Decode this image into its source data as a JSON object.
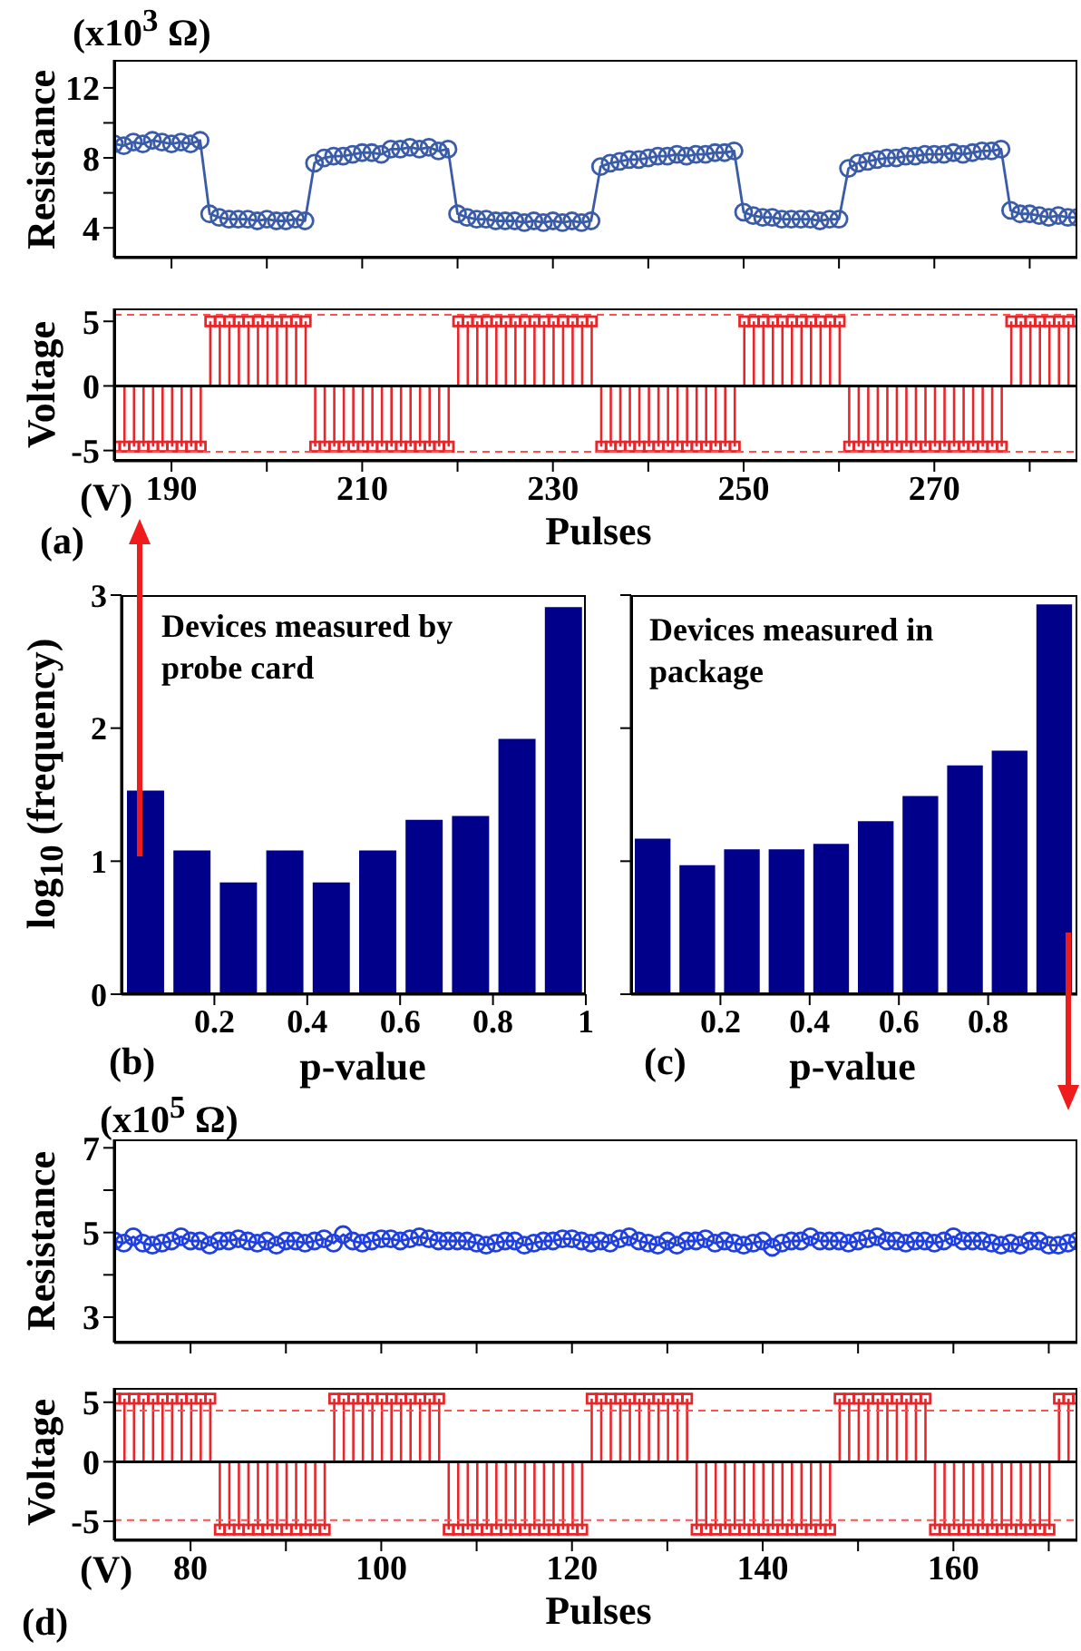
{
  "chart_data": [
    {
      "type": "line",
      "ylabel": "Resistance",
      "annotations": [
        "(x10$^{3}$ Ω)"
      ],
      "marker": "circle",
      "tick_labels": "y",
      "xlim": [
        184,
        285
      ],
      "xticks": [
        190,
        200,
        210,
        220,
        230,
        240,
        250,
        260,
        270,
        280
      ],
      "ylim": [
        2.3,
        13.6
      ],
      "yticks": [
        4,
        {
          "value": 6,
          "label": null
        },
        8,
        {
          "value": 10,
          "label": null
        },
        12
      ],
      "x": [
        184,
        185,
        186,
        187,
        188,
        189,
        190,
        191,
        192,
        193,
        194,
        195,
        196,
        197,
        198,
        199,
        200,
        201,
        202,
        203,
        204,
        205,
        206,
        207,
        208,
        209,
        210,
        211,
        212,
        213,
        214,
        215,
        216,
        217,
        218,
        219,
        220,
        221,
        222,
        223,
        224,
        225,
        226,
        227,
        228,
        229,
        230,
        231,
        232,
        233,
        234,
        235,
        236,
        237,
        238,
        239,
        240,
        241,
        242,
        243,
        244,
        245,
        246,
        247,
        248,
        249,
        250,
        251,
        252,
        253,
        254,
        255,
        256,
        257,
        258,
        259,
        260,
        261,
        262,
        263,
        264,
        265,
        266,
        267,
        268,
        269,
        270,
        271,
        272,
        273,
        274,
        275,
        276,
        277,
        278,
        279,
        280,
        281,
        282,
        283,
        284,
        285
      ],
      "series": [
        {
          "color": "#3a5ca8",
          "values": [
            8.8,
            8.7,
            8.9,
            8.8,
            9.0,
            8.9,
            8.8,
            8.9,
            8.8,
            9.0,
            4.8,
            4.6,
            4.5,
            4.5,
            4.5,
            4.4,
            4.5,
            4.4,
            4.4,
            4.5,
            4.4,
            7.7,
            8.0,
            8.1,
            8.1,
            8.2,
            8.3,
            8.3,
            8.2,
            8.5,
            8.5,
            8.6,
            8.5,
            8.6,
            8.4,
            8.5,
            4.8,
            4.6,
            4.5,
            4.5,
            4.4,
            4.4,
            4.4,
            4.3,
            4.4,
            4.3,
            4.4,
            4.3,
            4.4,
            4.3,
            4.4,
            7.5,
            7.7,
            7.8,
            7.9,
            7.9,
            8.0,
            8.1,
            8.1,
            8.2,
            8.1,
            8.2,
            8.2,
            8.3,
            8.3,
            8.4,
            4.9,
            4.7,
            4.6,
            4.6,
            4.5,
            4.5,
            4.5,
            4.5,
            4.4,
            4.5,
            4.5,
            7.4,
            7.7,
            7.8,
            7.9,
            8.0,
            8.0,
            8.1,
            8.1,
            8.2,
            8.2,
            8.2,
            8.3,
            8.2,
            8.3,
            8.4,
            8.4,
            8.5,
            5.0,
            4.8,
            4.8,
            4.7,
            4.6,
            4.7,
            4.6,
            4.6
          ]
        }
      ]
    },
    {
      "type": "lollipop",
      "ylabel": "Voltage",
      "xlabel": "Pulses",
      "annotations": [
        "(V)",
        "(a)"
      ],
      "marker": "square",
      "xlim": [
        184,
        285
      ],
      "xticks": [
        190,
        {
          "value": 200,
          "label": null
        },
        210,
        {
          "value": 220,
          "label": null
        },
        230,
        {
          "value": 240,
          "label": null
        },
        250,
        {
          "value": 260,
          "label": null
        },
        270,
        {
          "value": 280,
          "label": null
        }
      ],
      "ylim": [
        -5.8,
        6
      ],
      "yticks": [
        -5,
        0,
        5
      ],
      "ref_lines": [
        {
          "axis": "y",
          "value": 5.5,
          "color": "#ff5050",
          "line_style": "dashed"
        },
        {
          "axis": "y",
          "value": -5.1,
          "color": "#ff5050",
          "line_style": "dashed"
        },
        {
          "axis": "y",
          "value": 0,
          "color": "#000000",
          "line_style": "solid"
        }
      ],
      "x": [
        184,
        185,
        186,
        187,
        188,
        189,
        190,
        191,
        192,
        193,
        194,
        195,
        196,
        197,
        198,
        199,
        200,
        201,
        202,
        203,
        204,
        205,
        206,
        207,
        208,
        209,
        210,
        211,
        212,
        213,
        214,
        215,
        216,
        217,
        218,
        219,
        220,
        221,
        222,
        223,
        224,
        225,
        226,
        227,
        228,
        229,
        230,
        231,
        232,
        233,
        234,
        235,
        236,
        237,
        238,
        239,
        240,
        241,
        242,
        243,
        244,
        245,
        246,
        247,
        248,
        249,
        250,
        251,
        252,
        253,
        254,
        255,
        256,
        257,
        258,
        259,
        260,
        261,
        262,
        263,
        264,
        265,
        266,
        267,
        268,
        269,
        270,
        271,
        272,
        273,
        274,
        275,
        276,
        277,
        278,
        279,
        280,
        281,
        282,
        283,
        284,
        285
      ],
      "series": [
        {
          "color": "#e8262a",
          "values": [
            -4.7,
            -4.7,
            -4.7,
            -4.7,
            -4.7,
            -4.7,
            -4.7,
            -4.7,
            -4.7,
            -4.7,
            5,
            5,
            5,
            5,
            5,
            5,
            5,
            5,
            5,
            5,
            5,
            -4.7,
            -4.7,
            -4.7,
            -4.7,
            -4.7,
            -4.7,
            -4.7,
            -4.7,
            -4.7,
            -4.7,
            -4.7,
            -4.7,
            -4.7,
            -4.7,
            -4.7,
            5,
            5,
            5,
            5,
            5,
            5,
            5,
            5,
            5,
            5,
            5,
            5,
            5,
            5,
            5,
            -4.7,
            -4.7,
            -4.7,
            -4.7,
            -4.7,
            -4.7,
            -4.7,
            -4.7,
            -4.7,
            -4.7,
            -4.7,
            -4.7,
            -4.7,
            -4.7,
            -4.7,
            5,
            5,
            5,
            5,
            5,
            5,
            5,
            5,
            5,
            5,
            5,
            -4.7,
            -4.7,
            -4.7,
            -4.7,
            -4.7,
            -4.7,
            -4.7,
            -4.7,
            -4.7,
            -4.7,
            -4.7,
            -4.7,
            -4.7,
            -4.7,
            -4.7,
            -4.7,
            -4.7,
            5,
            5,
            5,
            5,
            5,
            5,
            5,
            5
          ]
        }
      ]
    },
    {
      "type": "histogram",
      "ylabel": "log$_{10}$ (frequency)",
      "xlabel": "p-value",
      "annotations": [
        "Devices measured by probe card",
        "(b)"
      ],
      "color": "#00008b",
      "bins": [
        0,
        0.1,
        0.2,
        0.3,
        0.4,
        0.5,
        0.6,
        0.7,
        0.8,
        0.9,
        1
      ],
      "values": [
        1.53,
        1.08,
        0.84,
        1.08,
        0.84,
        1.08,
        1.31,
        1.34,
        1.92,
        2.91
      ],
      "xlim": [
        0,
        1
      ],
      "xticks": [
        0.2,
        0.4,
        0.6,
        0.8,
        1
      ],
      "ylim": [
        0,
        3
      ],
      "yticks": [
        0,
        1,
        2,
        3
      ]
    },
    {
      "type": "histogram",
      "xlabel": "p-value",
      "annotations": [
        "Devices measured in package",
        "(c)"
      ],
      "color": "#00008b",
      "bins": [
        0,
        0.1,
        0.2,
        0.3,
        0.4,
        0.5,
        0.6,
        0.7,
        0.8,
        0.9,
        1
      ],
      "values": [
        1.17,
        0.97,
        1.09,
        1.09,
        1.13,
        1.3,
        1.49,
        1.72,
        1.83,
        2.93
      ],
      "xlim": [
        0,
        1
      ],
      "xticks": [
        0.2,
        0.4,
        0.6,
        0.8
      ],
      "ylim": [
        0,
        3
      ],
      "yticks": [
        0,
        1,
        2,
        3
      ],
      "tick_labels": "x"
    },
    {
      "type": "line",
      "ylabel": "Resistance",
      "annotations": [
        "(x10$^{5}$ Ω)"
      ],
      "marker": "circle",
      "tick_labels": "y",
      "xlim": [
        72,
        173
      ],
      "xticks": [
        80,
        90,
        100,
        110,
        120,
        130,
        140,
        150,
        160,
        170
      ],
      "ylim": [
        2.4,
        7.2
      ],
      "yticks": [
        3,
        {
          "value": 4,
          "label": null
        },
        5,
        {
          "value": 6,
          "label": null
        },
        7
      ],
      "x": [
        72,
        73,
        74,
        75,
        76,
        77,
        78,
        79,
        80,
        81,
        82,
        83,
        84,
        85,
        86,
        87,
        88,
        89,
        90,
        91,
        92,
        93,
        94,
        95,
        96,
        97,
        98,
        99,
        100,
        101,
        102,
        103,
        104,
        105,
        106,
        107,
        108,
        109,
        110,
        111,
        112,
        113,
        114,
        115,
        116,
        117,
        118,
        119,
        120,
        121,
        122,
        123,
        124,
        125,
        126,
        127,
        128,
        129,
        130,
        131,
        132,
        133,
        134,
        135,
        136,
        137,
        138,
        139,
        140,
        141,
        142,
        143,
        144,
        145,
        146,
        147,
        148,
        149,
        150,
        151,
        152,
        153,
        154,
        155,
        156,
        157,
        158,
        159,
        160,
        161,
        162,
        163,
        164,
        165,
        166,
        167,
        168,
        169,
        170,
        171,
        172,
        173
      ],
      "series": [
        {
          "color": "#1f3fe0",
          "values": [
            4.8,
            4.75,
            4.9,
            4.75,
            4.7,
            4.75,
            4.8,
            4.9,
            4.8,
            4.8,
            4.7,
            4.8,
            4.8,
            4.85,
            4.8,
            4.75,
            4.8,
            4.7,
            4.8,
            4.8,
            4.75,
            4.8,
            4.85,
            4.75,
            4.95,
            4.8,
            4.75,
            4.8,
            4.85,
            4.85,
            4.8,
            4.85,
            4.9,
            4.85,
            4.8,
            4.8,
            4.8,
            4.8,
            4.75,
            4.7,
            4.75,
            4.8,
            4.8,
            4.7,
            4.75,
            4.8,
            4.8,
            4.85,
            4.85,
            4.8,
            4.75,
            4.8,
            4.75,
            4.85,
            4.9,
            4.8,
            4.75,
            4.7,
            4.8,
            4.7,
            4.8,
            4.8,
            4.85,
            4.75,
            4.8,
            4.75,
            4.7,
            4.75,
            4.8,
            4.65,
            4.75,
            4.8,
            4.8,
            4.9,
            4.8,
            4.8,
            4.8,
            4.75,
            4.8,
            4.85,
            4.9,
            4.8,
            4.8,
            4.75,
            4.8,
            4.8,
            4.75,
            4.8,
            4.9,
            4.8,
            4.8,
            4.8,
            4.75,
            4.7,
            4.75,
            4.7,
            4.8,
            4.8,
            4.7,
            4.7,
            4.75,
            4.8
          ]
        }
      ]
    },
    {
      "type": "lollipop",
      "ylabel": "Voltage",
      "xlabel": "Pulses",
      "annotations": [
        "(V)",
        "(d)"
      ],
      "marker": "square",
      "xlim": [
        72,
        173
      ],
      "xticks": [
        80,
        {
          "value": 90,
          "label": null
        },
        100,
        {
          "value": 110,
          "label": null
        },
        120,
        {
          "value": 130,
          "label": null
        },
        140,
        {
          "value": 150,
          "label": null
        },
        160,
        {
          "value": 170,
          "label": null
        }
      ],
      "ylim": [
        -6.6,
        6.2
      ],
      "yticks": [
        -5,
        0,
        5
      ],
      "ref_lines": [
        {
          "axis": "y",
          "value": 4.3,
          "color": "#ff5050",
          "line_style": "dashed"
        },
        {
          "axis": "y",
          "value": -4.9,
          "color": "#ff5050",
          "line_style": "dashed"
        },
        {
          "axis": "y",
          "value": 0,
          "color": "#000000",
          "line_style": "solid"
        }
      ],
      "x": [
        72,
        73,
        74,
        75,
        76,
        77,
        78,
        79,
        80,
        81,
        82,
        83,
        84,
        85,
        86,
        87,
        88,
        89,
        90,
        91,
        92,
        93,
        94,
        95,
        96,
        97,
        98,
        99,
        100,
        101,
        102,
        103,
        104,
        105,
        106,
        107,
        108,
        109,
        110,
        111,
        112,
        113,
        114,
        115,
        116,
        117,
        118,
        119,
        120,
        121,
        122,
        123,
        124,
        125,
        126,
        127,
        128,
        129,
        130,
        131,
        132,
        133,
        134,
        135,
        136,
        137,
        138,
        139,
        140,
        141,
        142,
        143,
        144,
        145,
        146,
        147,
        148,
        149,
        150,
        151,
        152,
        153,
        154,
        155,
        156,
        157,
        158,
        159,
        160,
        161,
        162,
        163,
        164,
        165,
        166,
        167,
        168,
        169,
        170,
        171,
        172,
        173
      ],
      "series": [
        {
          "color": "#e8262a",
          "values": [
            5.3,
            5.3,
            5.3,
            5.3,
            5.3,
            5.3,
            5.3,
            5.3,
            5.3,
            5.3,
            5.3,
            -5.7,
            -5.7,
            -5.7,
            -5.7,
            -5.7,
            -5.7,
            -5.7,
            -5.7,
            -5.7,
            -5.7,
            -5.7,
            -5.7,
            5.3,
            5.3,
            5.3,
            5.3,
            5.3,
            5.3,
            5.3,
            5.3,
            5.3,
            5.3,
            5.3,
            5.3,
            -5.7,
            -5.7,
            -5.7,
            -5.7,
            -5.7,
            -5.7,
            -5.7,
            -5.7,
            -5.7,
            -5.7,
            -5.7,
            -5.7,
            -5.7,
            -5.7,
            -5.7,
            5.3,
            5.3,
            5.3,
            5.3,
            5.3,
            5.3,
            5.3,
            5.3,
            5.3,
            5.3,
            5.3,
            -5.7,
            -5.7,
            -5.7,
            -5.7,
            -5.7,
            -5.7,
            -5.7,
            -5.7,
            -5.7,
            -5.7,
            -5.7,
            -5.7,
            -5.7,
            -5.7,
            -5.7,
            5.3,
            5.3,
            5.3,
            5.3,
            5.3,
            5.3,
            5.3,
            5.3,
            5.3,
            5.3,
            -5.7,
            -5.7,
            -5.7,
            -5.7,
            -5.7,
            -5.7,
            -5.7,
            -5.7,
            -5.7,
            -5.7,
            -5.7,
            -5.7,
            -5.7,
            5.3,
            5.3,
            5.3
          ]
        }
      ]
    }
  ]
}
